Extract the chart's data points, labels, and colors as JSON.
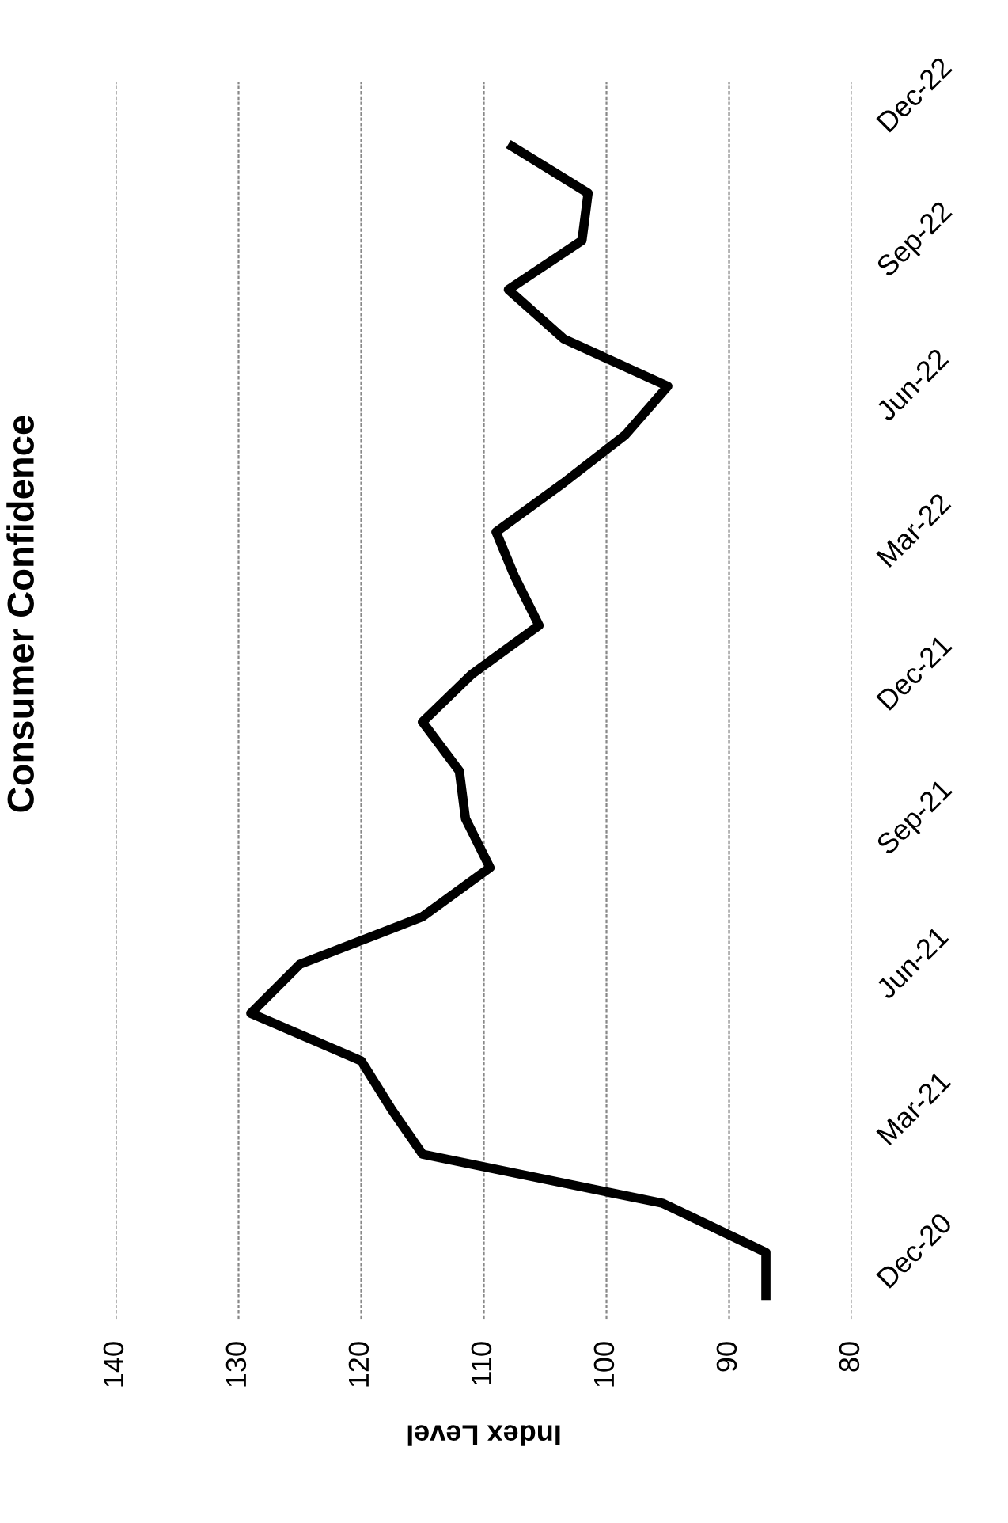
{
  "chart_data": {
    "type": "line",
    "orientation": "horizontal",
    "title": "Consumer Confidence",
    "xlabel": "Index Level",
    "x": [
      "2020-11",
      "2020-12",
      "2021-01",
      "2021-02",
      "2021-03",
      "2021-04",
      "2021-05",
      "2021-06",
      "2021-07",
      "2021-08",
      "2021-09",
      "2021-10",
      "2021-11",
      "2021-12",
      "2022-01",
      "2022-02",
      "2022-03",
      "2022-04",
      "2022-05",
      "2022-06",
      "2022-07",
      "2022-08",
      "2022-09",
      "2022-10",
      "2022-11"
    ],
    "series": [
      {
        "color": "#000000",
        "values": [
          87,
          87,
          95.4,
          115,
          117.5,
          120,
          129,
          125,
          115,
          109.5,
          111.5,
          112,
          115,
          111,
          105.5,
          107.5,
          109,
          103.5,
          98.5,
          95,
          103.5,
          108,
          102,
          101.5,
          108
        ]
      }
    ],
    "ylim": [
      "2020-10-20",
      "2022-12-10"
    ],
    "yticks": [
      {
        "value": "2020-12",
        "label": "Dec-20"
      },
      {
        "value": "2021-03",
        "label": "Mar-21"
      },
      {
        "value": "2021-06",
        "label": "Jun-21"
      },
      {
        "value": "2021-09",
        "label": "Sep-21"
      },
      {
        "value": "2021-12",
        "label": "Dec-21"
      },
      {
        "value": "2022-03",
        "label": "Mar-22"
      },
      {
        "value": "2022-06",
        "label": "Jun-22"
      },
      {
        "value": "2022-09",
        "label": "Sep-22"
      },
      {
        "value": "2022-12",
        "label": "Dec-22"
      }
    ],
    "xlim": [
      140,
      80
    ],
    "xticks": [
      140,
      130,
      120,
      110,
      100,
      90,
      80
    ],
    "grid": "x",
    "legend": false,
    "marker": "none",
    "line_style": "solid"
  }
}
